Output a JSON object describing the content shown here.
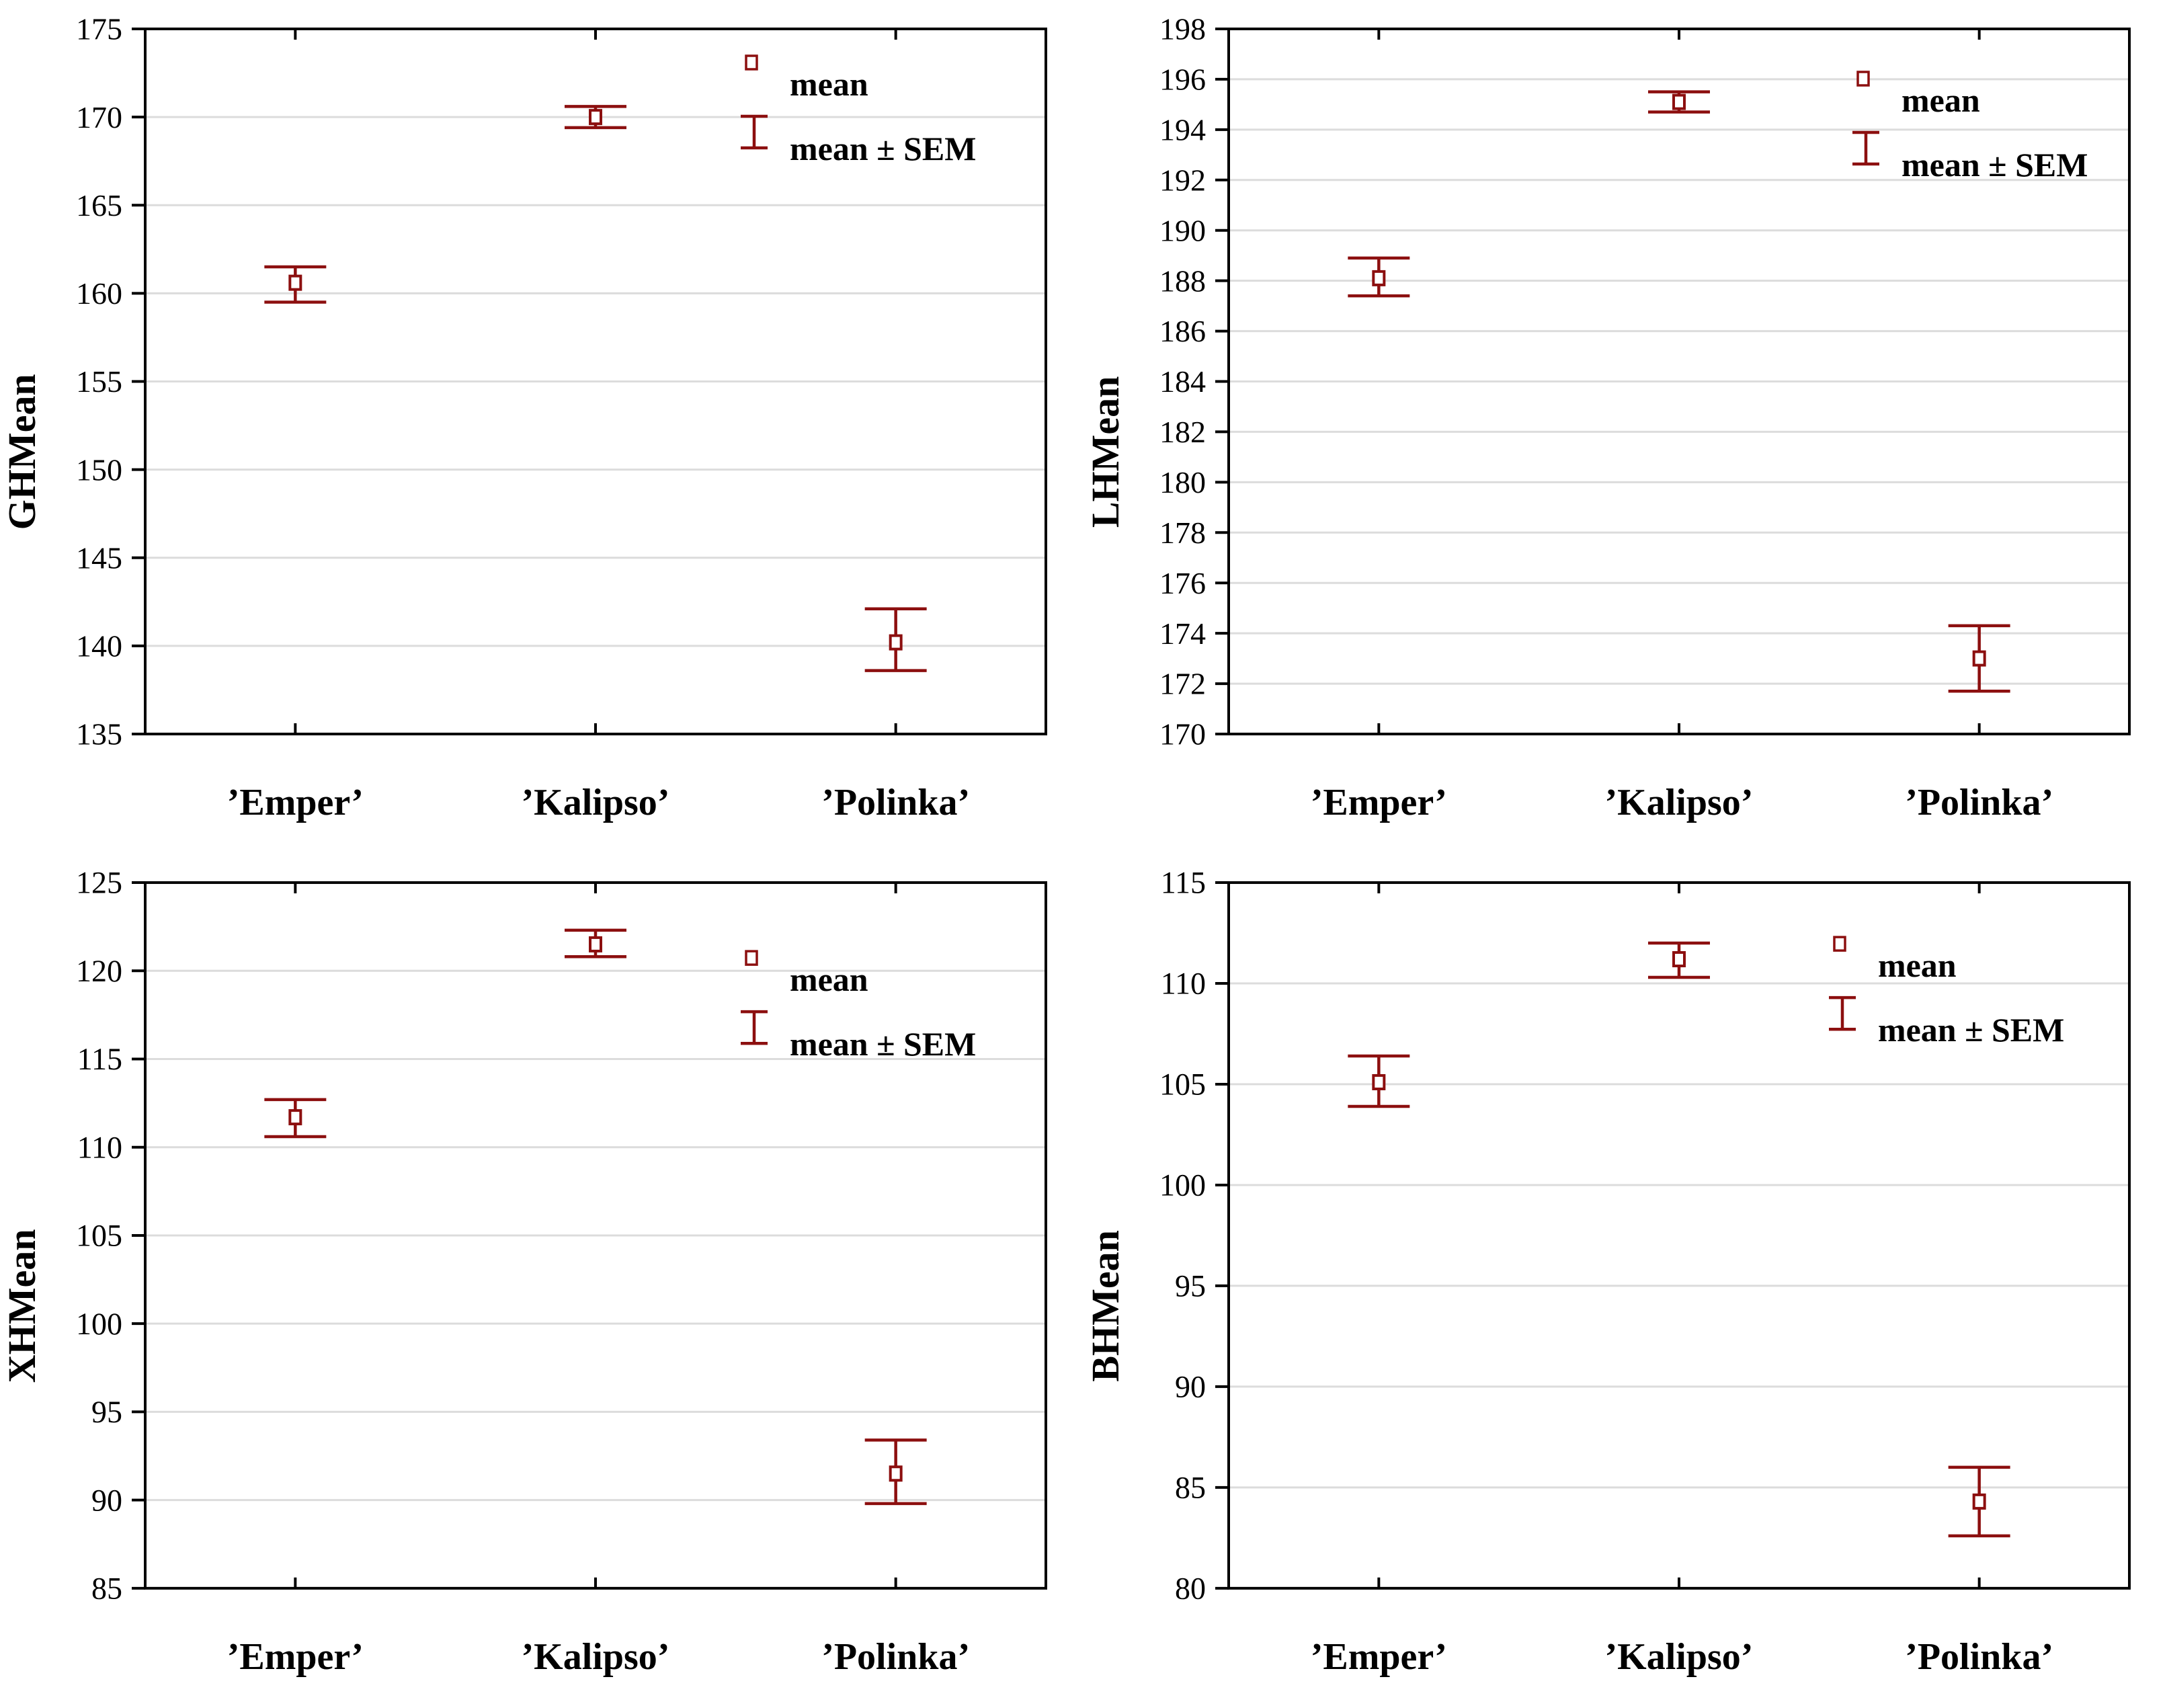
{
  "style": {
    "accent_red": "#8C0F0F",
    "grid_gray": "#DCDCDC",
    "axis_black": "#000000",
    "background": "#FFFFFF"
  },
  "legend": {
    "mean_label": "mean",
    "sem_label": "mean ± SEM"
  },
  "chart_data": [
    {
      "type": "scatter",
      "subtype": "mean-with-sem-error-bars",
      "ylabel": "GHMean",
      "categories": [
        "’Emper’",
        "’Kalipso’",
        "’Polinka’"
      ],
      "series": [
        {
          "name": "mean",
          "values": [
            160.6,
            170.0,
            140.2
          ]
        },
        {
          "name": "mean - SEM",
          "values": [
            159.5,
            169.4,
            138.6
          ]
        },
        {
          "name": "mean + SEM",
          "values": [
            161.5,
            170.6,
            142.1
          ]
        }
      ],
      "ylim": [
        135,
        175
      ],
      "ytick_step": 5,
      "grid": "horizontal",
      "legend_position": "inside-top-right",
      "legend_anchor": [
        1118,
        93
      ]
    },
    {
      "type": "scatter",
      "subtype": "mean-with-sem-error-bars",
      "ylabel": "LHMean",
      "categories": [
        "’Emper’",
        "’Kalipso’",
        "’Polinka’"
      ],
      "series": [
        {
          "name": "mean",
          "values": [
            188.1,
            195.1,
            173.0
          ]
        },
        {
          "name": "mean - SEM",
          "values": [
            187.4,
            194.7,
            171.7
          ]
        },
        {
          "name": "mean + SEM",
          "values": [
            188.9,
            195.5,
            174.3
          ]
        }
      ],
      "ylim": [
        170,
        198
      ],
      "ytick_step": 2,
      "grid": "horizontal",
      "legend_position": "inside-top-right",
      "legend_anchor": [
        1160,
        117
      ]
    },
    {
      "type": "scatter",
      "subtype": "mean-with-sem-error-bars",
      "ylabel": "XHMean",
      "categories": [
        "’Emper’",
        "’Kalipso’",
        "’Polinka’"
      ],
      "series": [
        {
          "name": "mean",
          "values": [
            111.7,
            121.5,
            91.5
          ]
        },
        {
          "name": "mean - SEM",
          "values": [
            110.6,
            120.8,
            89.8
          ]
        },
        {
          "name": "mean + SEM",
          "values": [
            112.7,
            122.3,
            93.4
          ]
        }
      ],
      "ylim": [
        85,
        125
      ],
      "ytick_step": 5,
      "grid": "horizontal",
      "legend_position": "inside-top-right",
      "legend_anchor": [
        1118,
        155
      ]
    },
    {
      "type": "scatter",
      "subtype": "mean-with-sem-error-bars",
      "ylabel": "BHMean",
      "categories": [
        "’Emper’",
        "’Kalipso’",
        "’Polinka’"
      ],
      "series": [
        {
          "name": "mean",
          "values": [
            105.1,
            111.2,
            84.3
          ]
        },
        {
          "name": "mean - SEM",
          "values": [
            103.9,
            110.3,
            82.6
          ]
        },
        {
          "name": "mean + SEM",
          "values": [
            106.4,
            112.0,
            86.0
          ]
        }
      ],
      "ylim": [
        80,
        115
      ],
      "ytick_step": 5,
      "grid": "horizontal",
      "legend_position": "inside-top-right",
      "legend_anchor": [
        1125,
        134
      ]
    }
  ]
}
